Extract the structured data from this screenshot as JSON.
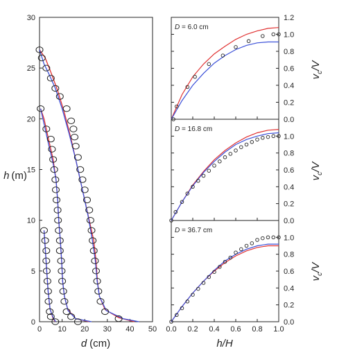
{
  "colors": {
    "model_a": "#e03030",
    "model_b": "#3a4fd8",
    "marker": "#222222",
    "frame": "#222222"
  },
  "chart_data": [
    {
      "type": "line",
      "xlabel": "d",
      "xunit": "(cm)",
      "ylabel": "h",
      "yunit": "(m)",
      "xlim": [
        0,
        50
      ],
      "ylim": [
        0,
        30
      ],
      "xticks": [
        "0",
        "10",
        "20",
        "30",
        "40",
        "50"
      ],
      "yticks": [
        "0",
        "5",
        "10",
        "15",
        "20",
        "25",
        "30"
      ],
      "groups": [
        {
          "observed": [
            [
              2,
              9
            ],
            [
              2.5,
              8
            ],
            [
              3,
              7
            ],
            [
              3,
              6
            ],
            [
              3.2,
              5
            ],
            [
              3.5,
              4
            ],
            [
              3.8,
              3
            ],
            [
              4,
              2
            ],
            [
              4.5,
              1
            ],
            [
              5,
              0.5
            ],
            [
              7,
              0
            ]
          ],
          "model_a": [
            [
              2,
              9
            ],
            [
              2.6,
              7
            ],
            [
              3.2,
              5
            ],
            [
              3.8,
              3
            ],
            [
              4.6,
              1.3
            ],
            [
              6,
              0.3
            ],
            [
              7,
              0
            ]
          ],
          "model_b": [
            [
              2,
              9
            ],
            [
              2.6,
              7
            ],
            [
              3.2,
              5
            ],
            [
              3.8,
              3
            ],
            [
              4.7,
              1.2
            ],
            [
              6.2,
              0.3
            ],
            [
              7.2,
              0
            ]
          ]
        },
        {
          "observed": [
            [
              0.5,
              21
            ],
            [
              3,
              19
            ],
            [
              5,
              18
            ],
            [
              5.5,
              17
            ],
            [
              6,
              16
            ],
            [
              6.5,
              15
            ],
            [
              7,
              14
            ],
            [
              7.2,
              13
            ],
            [
              7.5,
              12
            ],
            [
              8,
              11
            ],
            [
              8.2,
              10
            ],
            [
              8.5,
              9
            ],
            [
              9,
              8
            ],
            [
              9,
              7
            ],
            [
              9.5,
              6
            ],
            [
              9.8,
              5
            ],
            [
              10,
              4
            ],
            [
              10.5,
              3
            ],
            [
              11,
              2
            ],
            [
              12,
              1
            ],
            [
              14,
              0.5
            ],
            [
              17,
              0
            ]
          ],
          "model_a": [
            [
              0.5,
              21
            ],
            [
              2,
              20
            ],
            [
              4,
              18
            ],
            [
              6,
              16
            ],
            [
              7.3,
              14
            ],
            [
              8,
              12
            ],
            [
              8.5,
              10
            ],
            [
              9.2,
              8
            ],
            [
              9.8,
              6
            ],
            [
              10.2,
              4
            ],
            [
              11,
              2.5
            ],
            [
              12.5,
              1.2
            ],
            [
              16,
              0.3
            ],
            [
              22,
              0
            ]
          ],
          "model_b": [
            [
              0.5,
              21
            ],
            [
              2,
              19.5
            ],
            [
              4,
              17.5
            ],
            [
              6,
              15.6
            ],
            [
              7.3,
              14
            ],
            [
              8,
              12
            ],
            [
              8.5,
              10
            ],
            [
              9.2,
              8
            ],
            [
              9.8,
              6
            ],
            [
              10.2,
              4
            ],
            [
              11,
              2.5
            ],
            [
              12.6,
              1.1
            ],
            [
              16,
              0.3
            ],
            [
              23,
              0
            ]
          ]
        },
        {
          "observed": [
            [
              0,
              26.8
            ],
            [
              1,
              26
            ],
            [
              3,
              25
            ],
            [
              5,
              24
            ],
            [
              7,
              23
            ],
            [
              9,
              22.2
            ],
            [
              12,
              21
            ],
            [
              14,
              19.8
            ],
            [
              15,
              19
            ],
            [
              15.5,
              18.2
            ],
            [
              16,
              17.3
            ],
            [
              17,
              16.2
            ],
            [
              18,
              15
            ],
            [
              19,
              14
            ],
            [
              20,
              13
            ],
            [
              21,
              12
            ],
            [
              22,
              11
            ],
            [
              22.5,
              10
            ],
            [
              23,
              9
            ],
            [
              23.5,
              8
            ],
            [
              24,
              7
            ],
            [
              24.5,
              6
            ],
            [
              25,
              5
            ],
            [
              25.5,
              4
            ],
            [
              26,
              3
            ],
            [
              27,
              2
            ],
            [
              29,
              1
            ],
            [
              35,
              0.3
            ]
          ],
          "model_a": [
            [
              0,
              26.8
            ],
            [
              2.5,
              26
            ],
            [
              5,
              24.6
            ],
            [
              8,
              22.8
            ],
            [
              11,
              20.6
            ],
            [
              14,
              18
            ],
            [
              17,
              15
            ],
            [
              20,
              12
            ],
            [
              22,
              10
            ],
            [
              24,
              8
            ],
            [
              25,
              6
            ],
            [
              25.6,
              4
            ],
            [
              26.5,
              2.5
            ],
            [
              29,
              1.2
            ],
            [
              35,
              0.4
            ],
            [
              42,
              0
            ]
          ],
          "model_b": [
            [
              0,
              26.8
            ],
            [
              2,
              25.4
            ],
            [
              4,
              24.5
            ],
            [
              7,
              23
            ],
            [
              10,
              21
            ],
            [
              13,
              18.6
            ],
            [
              16,
              16
            ],
            [
              19,
              13
            ],
            [
              21.5,
              10.4
            ],
            [
              23.4,
              8
            ],
            [
              24.7,
              6
            ],
            [
              25.5,
              4
            ],
            [
              26.5,
              2.5
            ],
            [
              29.5,
              1.1
            ],
            [
              37,
              0.3
            ],
            [
              44,
              0
            ]
          ]
        }
      ]
    },
    {
      "type": "line",
      "annotation": {
        "var": "D",
        "text": " = 6.0 cm"
      },
      "ylabel": "v",
      "ysub": "c",
      "ytail": "/V",
      "xlim": [
        0,
        1
      ],
      "ylim": [
        0,
        1.2
      ],
      "yticks": [
        "0.0",
        "0.2",
        "0.4",
        "0.6",
        "0.8",
        "1.0",
        "1.2"
      ],
      "observed": [
        [
          0.02,
          0
        ],
        [
          0.05,
          0.15
        ],
        [
          0.15,
          0.38
        ],
        [
          0.22,
          0.5
        ],
        [
          0.35,
          0.65
        ],
        [
          0.48,
          0.75
        ],
        [
          0.6,
          0.85
        ],
        [
          0.72,
          0.92
        ],
        [
          0.85,
          0.98
        ],
        [
          0.95,
          1.0
        ],
        [
          1.0,
          1.0
        ]
      ],
      "model_a": [
        [
          0,
          0
        ],
        [
          0.1,
          0.29
        ],
        [
          0.2,
          0.5
        ],
        [
          0.3,
          0.65
        ],
        [
          0.4,
          0.77
        ],
        [
          0.5,
          0.86
        ],
        [
          0.6,
          0.94
        ],
        [
          0.7,
          1.0
        ],
        [
          0.8,
          1.04
        ],
        [
          0.9,
          1.07
        ],
        [
          1.0,
          1.08
        ]
      ],
      "model_b": [
        [
          0,
          0
        ],
        [
          0.1,
          0.22
        ],
        [
          0.2,
          0.4
        ],
        [
          0.3,
          0.54
        ],
        [
          0.4,
          0.66
        ],
        [
          0.5,
          0.75
        ],
        [
          0.6,
          0.82
        ],
        [
          0.7,
          0.87
        ],
        [
          0.8,
          0.9
        ],
        [
          0.9,
          0.91
        ],
        [
          1.0,
          0.91
        ]
      ]
    },
    {
      "type": "line",
      "annotation": {
        "var": "D",
        "text": " = 16.8 cm"
      },
      "ylabel": "v",
      "ysub": "c",
      "ytail": "/V",
      "xlim": [
        0,
        1
      ],
      "ylim": [
        0,
        1.2
      ],
      "yticks": [
        "0.0",
        "0.2",
        "0.4",
        "0.6",
        "0.8",
        "1.0"
      ],
      "observed": [
        [
          0,
          0
        ],
        [
          0.04,
          0.1
        ],
        [
          0.1,
          0.22
        ],
        [
          0.15,
          0.32
        ],
        [
          0.2,
          0.4
        ],
        [
          0.25,
          0.47
        ],
        [
          0.3,
          0.53
        ],
        [
          0.35,
          0.59
        ],
        [
          0.4,
          0.65
        ],
        [
          0.45,
          0.7
        ],
        [
          0.5,
          0.75
        ],
        [
          0.55,
          0.79
        ],
        [
          0.6,
          0.83
        ],
        [
          0.65,
          0.87
        ],
        [
          0.7,
          0.9
        ],
        [
          0.75,
          0.93
        ],
        [
          0.8,
          0.96
        ],
        [
          0.85,
          0.98
        ],
        [
          0.9,
          0.99
        ],
        [
          0.95,
          1.0
        ],
        [
          1.0,
          1.0
        ]
      ],
      "model_a": [
        [
          0,
          0
        ],
        [
          0.1,
          0.22
        ],
        [
          0.2,
          0.42
        ],
        [
          0.3,
          0.58
        ],
        [
          0.4,
          0.72
        ],
        [
          0.5,
          0.83
        ],
        [
          0.6,
          0.92
        ],
        [
          0.7,
          0.99
        ],
        [
          0.8,
          1.04
        ],
        [
          0.9,
          1.07
        ],
        [
          1.0,
          1.08
        ]
      ],
      "model_b": [
        [
          0,
          0
        ],
        [
          0.1,
          0.22
        ],
        [
          0.2,
          0.41
        ],
        [
          0.3,
          0.57
        ],
        [
          0.4,
          0.7
        ],
        [
          0.5,
          0.81
        ],
        [
          0.6,
          0.9
        ],
        [
          0.7,
          0.96
        ],
        [
          0.8,
          1.0
        ],
        [
          0.9,
          1.03
        ],
        [
          1.0,
          1.04
        ]
      ]
    },
    {
      "type": "line",
      "annotation": {
        "var": "D",
        "text": " = 36.7 cm"
      },
      "xlabel": "h/H",
      "ylabel": "v",
      "ysub": "c",
      "ytail": "/V",
      "xlim": [
        0,
        1
      ],
      "ylim": [
        0,
        1.2
      ],
      "xticks": [
        "0.0",
        "0.2",
        "0.4",
        "0.6",
        "0.8",
        "1.0"
      ],
      "yticks": [
        "0.0",
        "0.2",
        "0.4",
        "0.6",
        "0.8",
        "1.0"
      ],
      "observed": [
        [
          0,
          0
        ],
        [
          0.05,
          0.08
        ],
        [
          0.1,
          0.16
        ],
        [
          0.15,
          0.24
        ],
        [
          0.2,
          0.32
        ],
        [
          0.25,
          0.39
        ],
        [
          0.3,
          0.46
        ],
        [
          0.35,
          0.53
        ],
        [
          0.4,
          0.59
        ],
        [
          0.45,
          0.65
        ],
        [
          0.5,
          0.71
        ],
        [
          0.55,
          0.76
        ],
        [
          0.6,
          0.82
        ],
        [
          0.65,
          0.86
        ],
        [
          0.7,
          0.9
        ],
        [
          0.75,
          0.93
        ],
        [
          0.8,
          0.97
        ],
        [
          0.85,
          0.99
        ],
        [
          0.9,
          1.0
        ],
        [
          0.95,
          1.0
        ],
        [
          1.0,
          1.0
        ]
      ],
      "model_a": [
        [
          0,
          0
        ],
        [
          0.1,
          0.18
        ],
        [
          0.2,
          0.34
        ],
        [
          0.3,
          0.48
        ],
        [
          0.4,
          0.6
        ],
        [
          0.5,
          0.7
        ],
        [
          0.6,
          0.78
        ],
        [
          0.7,
          0.84
        ],
        [
          0.8,
          0.88
        ],
        [
          0.9,
          0.9
        ],
        [
          1.0,
          0.9
        ]
      ],
      "model_b": [
        [
          0,
          0
        ],
        [
          0.1,
          0.18
        ],
        [
          0.2,
          0.34
        ],
        [
          0.3,
          0.48
        ],
        [
          0.4,
          0.61
        ],
        [
          0.5,
          0.72
        ],
        [
          0.6,
          0.8
        ],
        [
          0.7,
          0.86
        ],
        [
          0.8,
          0.9
        ],
        [
          0.9,
          0.92
        ],
        [
          1.0,
          0.92
        ]
      ]
    }
  ]
}
